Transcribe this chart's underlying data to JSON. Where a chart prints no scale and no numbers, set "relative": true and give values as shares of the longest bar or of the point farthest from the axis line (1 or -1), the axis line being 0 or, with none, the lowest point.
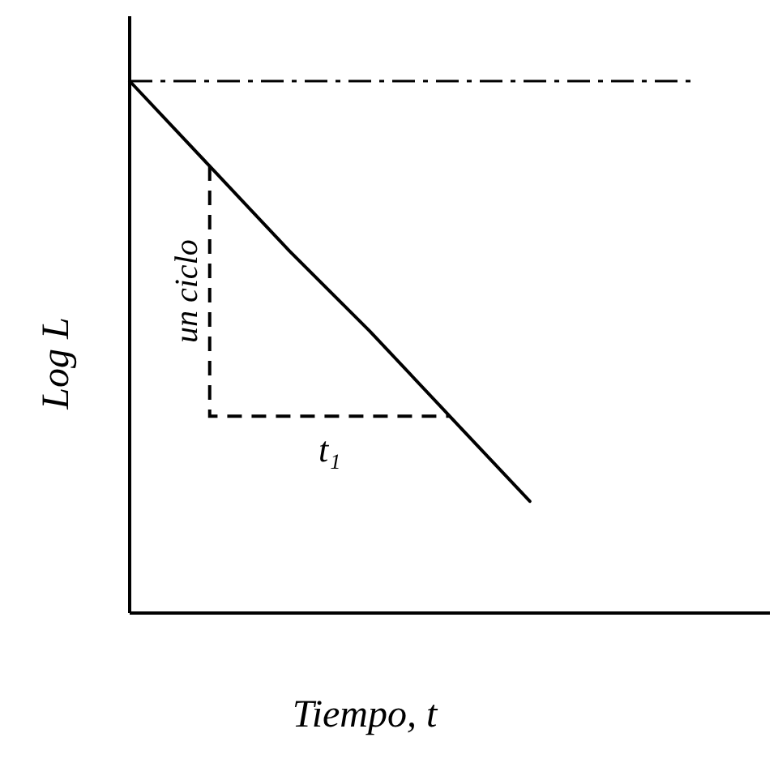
{
  "chart_data": {
    "type": "line",
    "relative": true,
    "xlabel": "Tiempo, t",
    "ylabel": "Log L",
    "categories": [
      null,
      null,
      null,
      null,
      null,
      null,
      null,
      null,
      null
    ],
    "series": [
      {
        "color": "#000000",
        "values": [
          1,
          0.84,
          0.68,
          0.53,
          0.37,
          0.21,
          null,
          null,
          null
        ]
      }
    ],
    "ref_lines": [
      {
        "axis": "y",
        "value": 1,
        "line_style": "dashdot",
        "color": "#000000"
      }
    ],
    "annotations": [
      "un ciclo",
      "t₁"
    ]
  }
}
